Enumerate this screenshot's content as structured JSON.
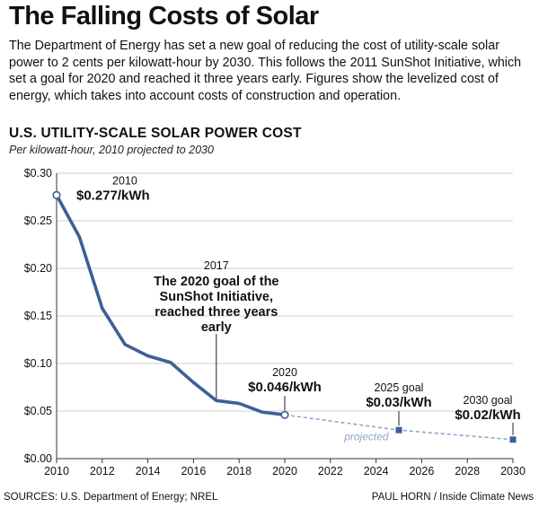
{
  "headline": "The Falling Costs of Solar",
  "intro": "The Department of Energy has set a new goal of reducing the cost of utility-scale solar power to 2 cents per kilowatt-hour by 2030. This follows the 2011 SunShot Initiative, which set a goal for 2020 and reached it three years early. Figures show the levelized cost of energy, which takes into account costs of construction and operation.",
  "chart_title": "U.S. UTILITY-SCALE SOLAR POWER COST",
  "chart_subtitle": "Per kilowatt-hour, 2010 projected to 2030",
  "footer": {
    "sources": "SOURCES: U.S. Department of Energy; NREL",
    "credit": "PAUL HORN / Inside Climate News"
  },
  "colors": {
    "line": "#3e5f95",
    "projected": "#8fa6cc",
    "grid": "#cfcfcf",
    "axis": "#333333"
  },
  "chart_data": {
    "type": "line",
    "xlim": [
      2010,
      2030
    ],
    "ylim": [
      0,
      0.3
    ],
    "grid": true,
    "x_ticks": [
      2010,
      2012,
      2014,
      2016,
      2018,
      2020,
      2022,
      2024,
      2026,
      2028,
      2030
    ],
    "x_tick_labels": [
      "2010",
      "2012",
      "2014",
      "2016",
      "2018",
      "2020",
      "2022",
      "2024",
      "2026",
      "2028",
      "2030"
    ],
    "y_ticks": [
      0,
      0.05,
      0.1,
      0.15,
      0.2,
      0.25,
      0.3
    ],
    "y_tick_labels": [
      "$0.00",
      "$0.05",
      "$0.10",
      "$0.15",
      "$0.20",
      "$0.25",
      "$0.30"
    ],
    "series": [
      {
        "style": "solid",
        "x": [
          2010,
          2011,
          2012,
          2013,
          2014,
          2015,
          2016,
          2017,
          2018,
          2019,
          2020
        ],
        "y": [
          0.277,
          0.233,
          0.158,
          0.12,
          0.108,
          0.101,
          0.08,
          0.061,
          0.058,
          0.049,
          0.046
        ]
      },
      {
        "style": "dashed",
        "x": [
          2020,
          2025,
          2030
        ],
        "y": [
          0.046,
          0.03,
          0.02
        ]
      }
    ],
    "projected_label": "projected",
    "annotations": [
      {
        "id": "a2010",
        "x": 2010,
        "y": 0.277,
        "year": "2010",
        "value": "$0.277/kWh",
        "marker": "open-circle"
      },
      {
        "id": "a2017",
        "x": 2017,
        "y": 0.061,
        "year": "2017",
        "lines": [
          "The 2020 goal of the",
          "SunShot Initiative,",
          "reached three years",
          "early"
        ],
        "marker": "none"
      },
      {
        "id": "a2020",
        "x": 2020,
        "y": 0.046,
        "year": "2020",
        "value": "$0.046/kWh",
        "marker": "open-circle"
      },
      {
        "id": "a2025",
        "x": 2025,
        "y": 0.03,
        "year": "2025 goal",
        "value": "$0.03/kWh",
        "marker": "square"
      },
      {
        "id": "a2030",
        "x": 2030,
        "y": 0.02,
        "year": "2030 goal",
        "value": "$0.02/kWh",
        "marker": "square"
      }
    ]
  }
}
